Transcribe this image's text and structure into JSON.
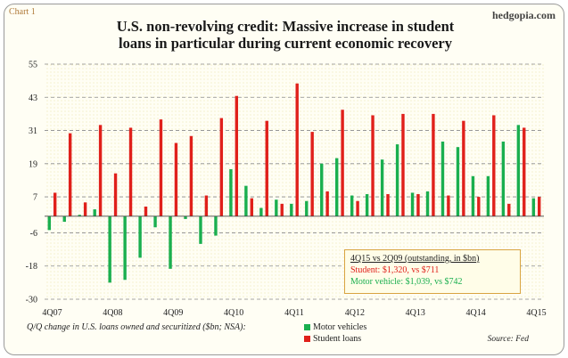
{
  "header": {
    "chart_label": "Chart 1",
    "brand": "hedgopia.com",
    "title_line1": "U.S. non-revolving credit: Massive increase in student",
    "title_line2": "loans in particular during current economic recovery"
  },
  "annotation": {
    "line1": "4Q15 vs 2Q09 (outstanding, in $bn)",
    "line2": "Student: $1,320, vs $711",
    "line3": "Motor vehicle: $1,039, vs $742"
  },
  "legend": {
    "caption": "Q/Q change in U.S. loans owned and securitized ($bn; NSA):",
    "motor": "Motor vehicles",
    "student": "Student loans"
  },
  "source": "Source: Fed",
  "colors": {
    "motor": "#1aaf4f",
    "student": "#e0201b",
    "grid": "#8a8a8a",
    "plot_bg": "#fffef4"
  },
  "chart_data": {
    "type": "bar",
    "title": "U.S. non-revolving credit: Massive increase in student loans in particular during current economic recovery",
    "ylim": [
      -30,
      55
    ],
    "yticks": [
      55,
      43,
      31,
      19,
      7,
      -6,
      -18,
      -30
    ],
    "grid": "horizontal dashed",
    "legend_position": "bottom-left",
    "categories": [
      "4Q07",
      "1Q08",
      "2Q08",
      "3Q08",
      "4Q08",
      "1Q09",
      "2Q09",
      "3Q09",
      "4Q09",
      "1Q10",
      "2Q10",
      "3Q10",
      "4Q10",
      "1Q11",
      "2Q11",
      "3Q11",
      "4Q11",
      "1Q12",
      "2Q12",
      "3Q12",
      "4Q12",
      "1Q13",
      "2Q13",
      "3Q13",
      "4Q13",
      "1Q14",
      "2Q14",
      "3Q14",
      "4Q14",
      "1Q15",
      "2Q15",
      "3Q15",
      "4Q15"
    ],
    "xtick_labels": [
      "4Q07",
      "4Q08",
      "4Q09",
      "4Q10",
      "4Q11",
      "4Q12",
      "4Q13",
      "4Q14",
      "4Q15"
    ],
    "series": [
      {
        "name": "Motor vehicles",
        "values": [
          -5,
          -2,
          0.5,
          2.5,
          -24,
          -23,
          -15,
          -4,
          -19,
          -1,
          -10,
          -7,
          17,
          11,
          3,
          6,
          4.5,
          5.5,
          19,
          21,
          7.5,
          8,
          20.5,
          26,
          8.5,
          9,
          27,
          25,
          14.5,
          14.5,
          27,
          33,
          6.5
        ]
      },
      {
        "name": "Student loans",
        "values": [
          8.5,
          30,
          5,
          33,
          15.5,
          32,
          3.5,
          35,
          26.5,
          29,
          7.5,
          35.5,
          43.5,
          6.5,
          34.5,
          4.5,
          48,
          30.5,
          9,
          38.5,
          5.5,
          36.5,
          8,
          37,
          8,
          37,
          7.5,
          34.5,
          7,
          36.5,
          4.5,
          32,
          7
        ]
      }
    ]
  }
}
